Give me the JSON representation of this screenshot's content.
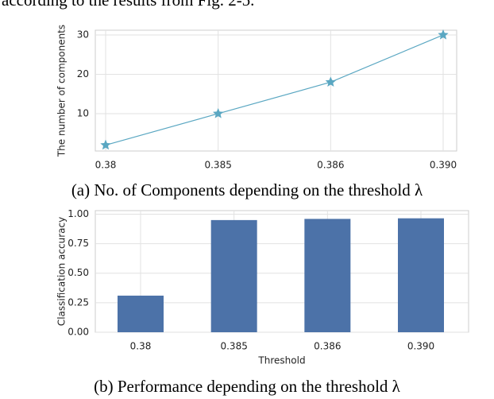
{
  "text": "according to the results from Fig. 2-5.",
  "chart_data": [
    {
      "type": "line",
      "caption": "(a) No. of Components depending on the threshold λ",
      "ylabel": "The number of components",
      "categories": [
        "0.38",
        "0.385",
        "0.386",
        "0.390"
      ],
      "values": [
        2,
        10,
        18,
        30
      ],
      "color": "#5aa7c2",
      "ylim": [
        0.5,
        31.2
      ],
      "yticks": [
        10,
        20,
        30
      ],
      "grid": true
    },
    {
      "type": "bar",
      "caption": "(b) Performance depending on the threshold λ",
      "xlabel": "Threshold",
      "ylabel": "Classification accuracy",
      "categories": [
        "0.38",
        "0.385",
        "0.386",
        "0.390"
      ],
      "values": [
        0.31,
        0.95,
        0.96,
        0.965
      ],
      "color": "#4c72a8",
      "ylim": [
        0,
        1.03
      ],
      "yticks": [
        {
          "value": 0,
          "label": "0.00"
        },
        {
          "value": 0.25,
          "label": "0.25"
        },
        {
          "value": 0.5,
          "label": "0.50"
        },
        {
          "value": 0.75,
          "label": "0.75"
        },
        {
          "value": 1,
          "label": "1.00"
        }
      ],
      "grid": true
    }
  ]
}
